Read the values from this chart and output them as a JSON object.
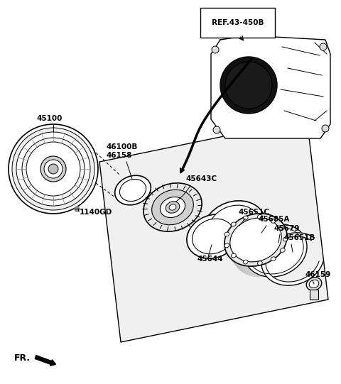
{
  "background_color": "#ffffff",
  "line_color": "#000000",
  "labels": {
    "ref": "REF.43-450B",
    "part1": "45100",
    "part2": "46100B",
    "part3": "46158",
    "part4": "45643C",
    "part5": "1140GD",
    "part6": "45644",
    "part7": "45651C",
    "part8": "45685A",
    "part9": "45679",
    "part10": "45651B",
    "part11": "46159",
    "fr": "FR."
  },
  "fig_width": 4.8,
  "fig_height": 5.41,
  "dpi": 100
}
